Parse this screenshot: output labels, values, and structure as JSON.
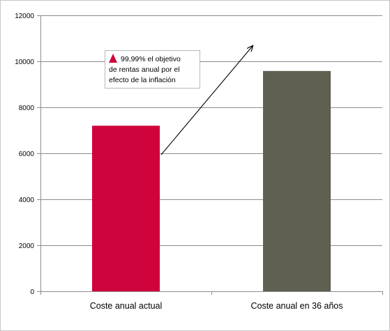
{
  "chart_data": {
    "type": "bar",
    "categories": [
      "Coste anual actual",
      "Coste anual en 36 años"
    ],
    "values": [
      7200,
      9580
    ],
    "colors": [
      "#d0043c",
      "#5f5f52"
    ],
    "ylim": [
      0,
      12000
    ],
    "yticks": [
      0,
      2000,
      4000,
      6000,
      8000,
      10000,
      12000
    ],
    "grid": true,
    "legend": "none",
    "annotation": {
      "lines": [
        "99,99% el objetivo",
        "de rentas anual por el",
        "efecto de la inflación"
      ],
      "icon": "red-triangle-up-icon",
      "icon_color": "#cc0a3c",
      "arrow": "up-right"
    }
  }
}
